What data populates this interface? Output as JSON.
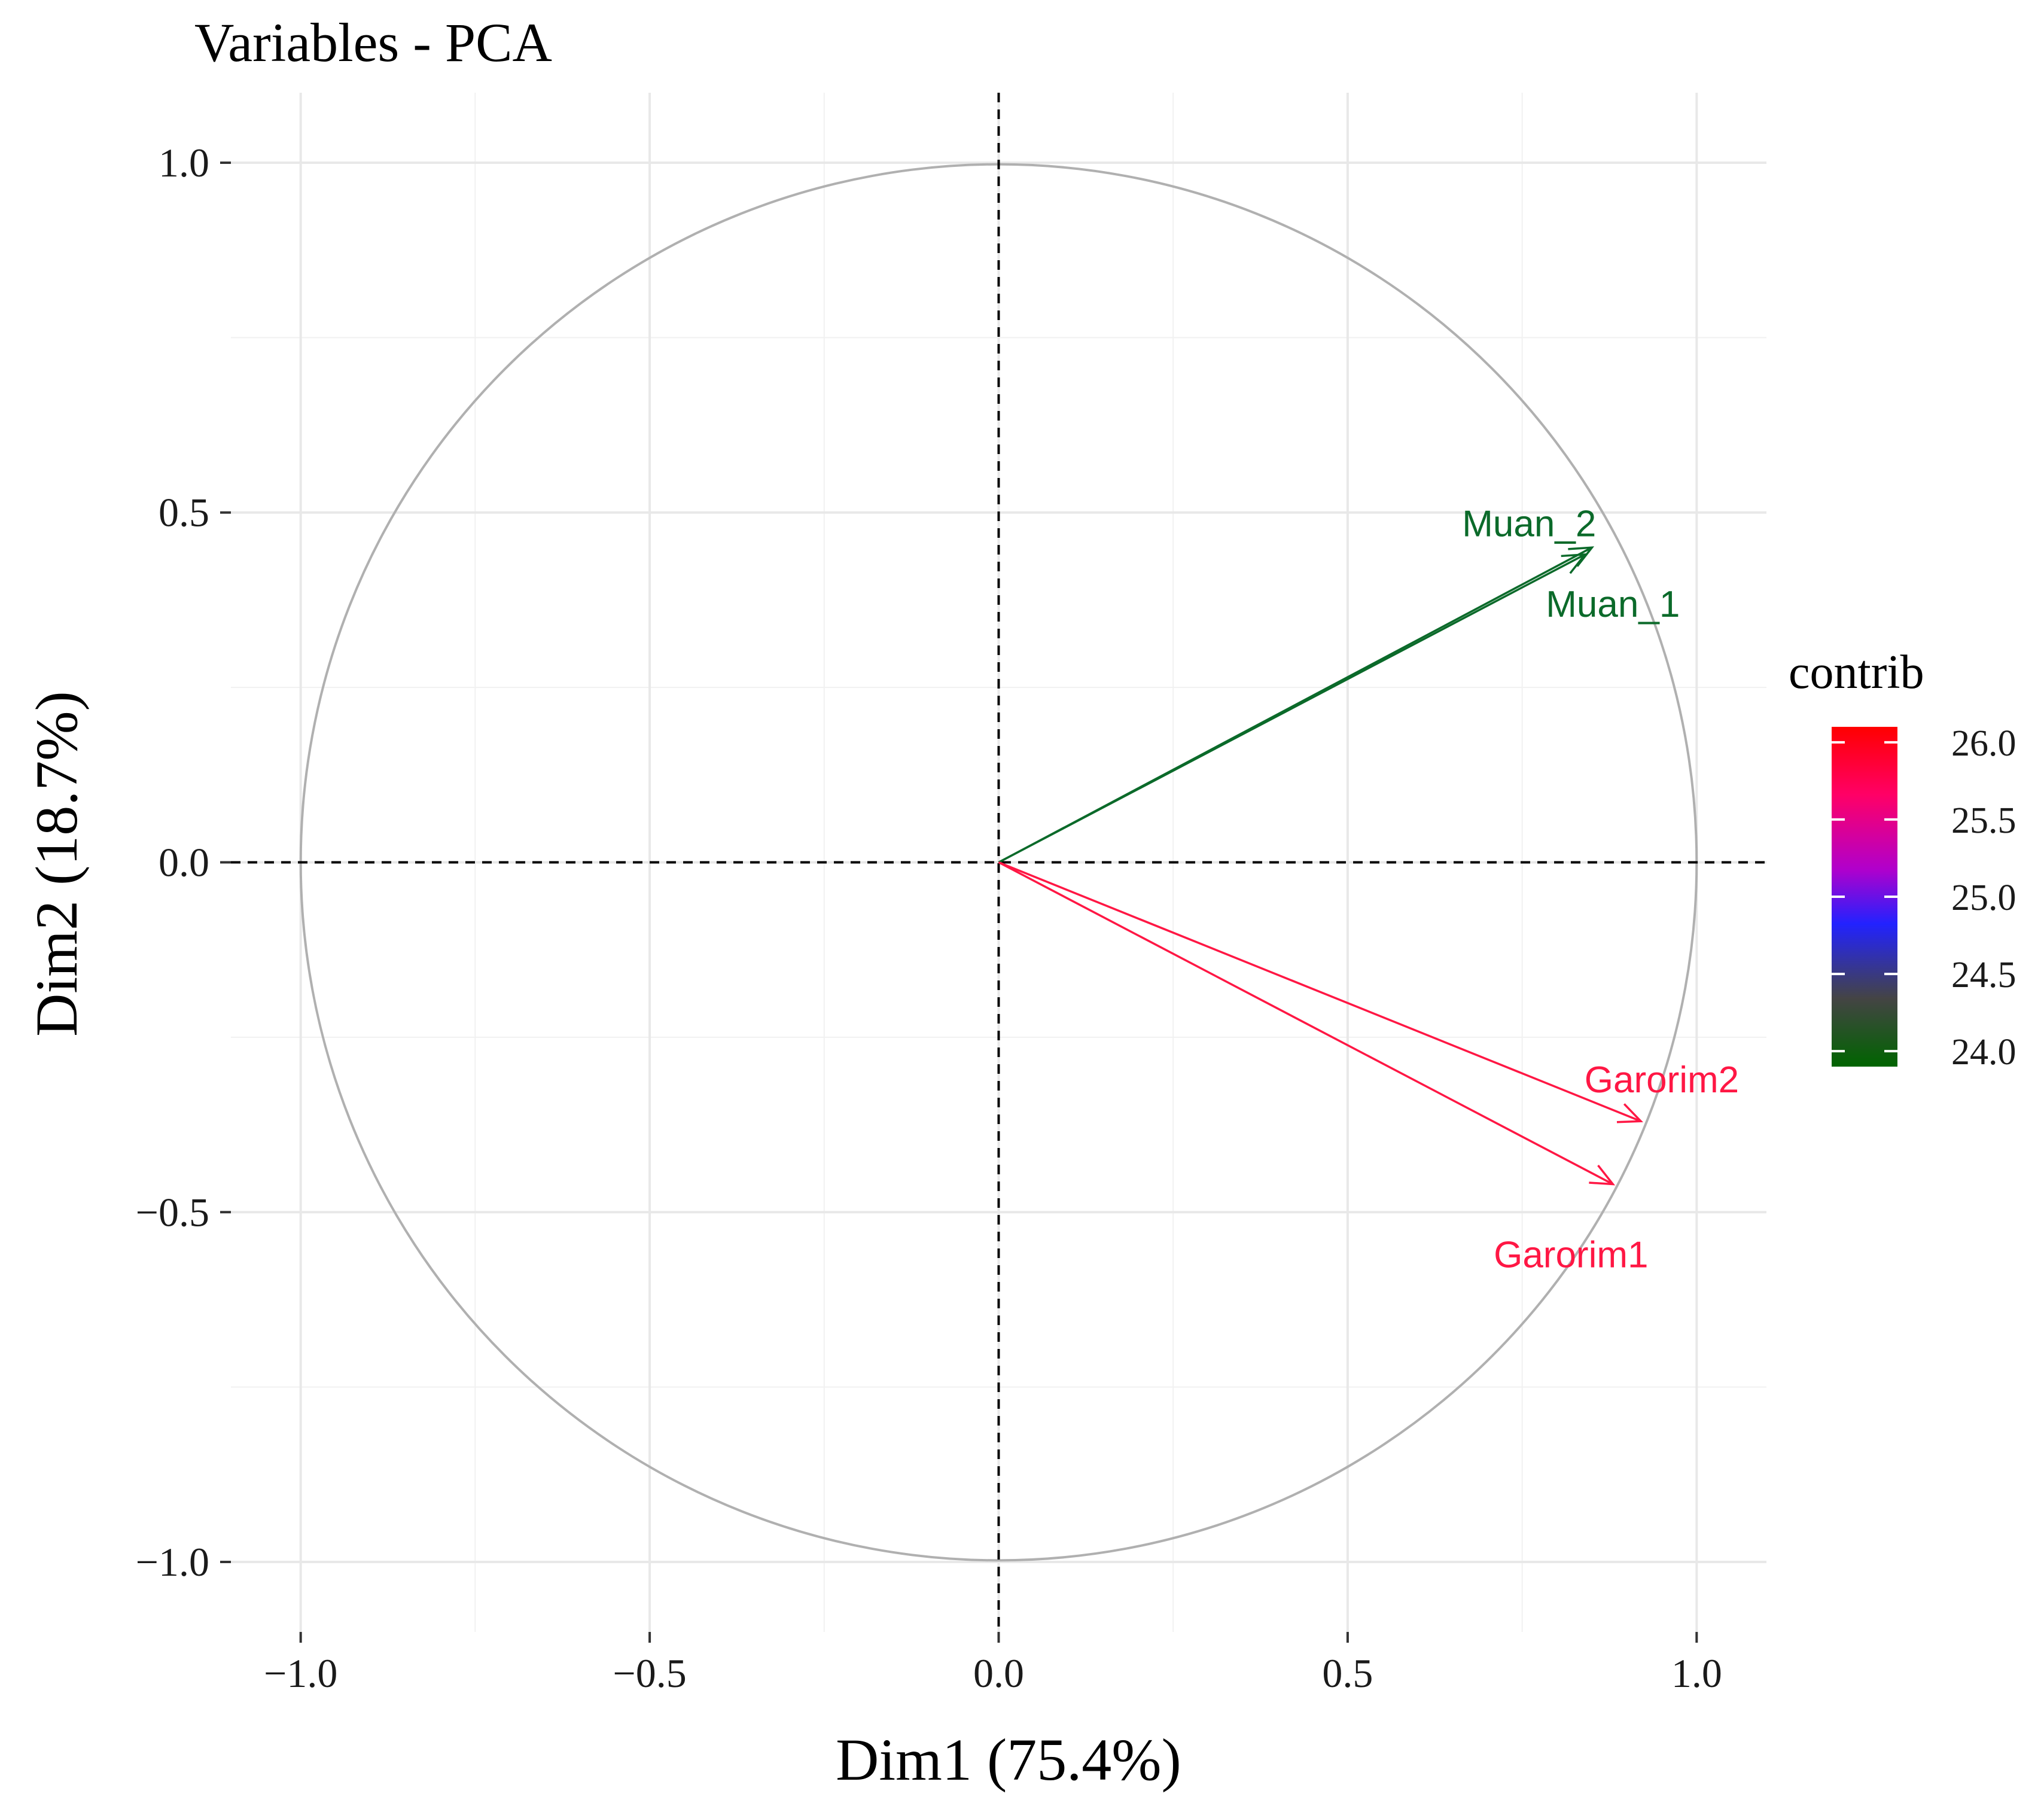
{
  "chart_data": {
    "type": "pca-variables",
    "title": "Variables - PCA",
    "xlabel": "Dim1 (75.4%)",
    "ylabel": "Dim2 (18.7%)",
    "xlim": [
      -1.1,
      1.1
    ],
    "ylim": [
      -1.1,
      1.1
    ],
    "x_ticks": [
      -1.0,
      -0.5,
      0.0,
      0.5,
      1.0
    ],
    "y_ticks": [
      -1.0,
      -0.5,
      0.0,
      0.5,
      1.0
    ],
    "x_tick_labels": [
      "−1.0",
      "−0.5",
      "0.0",
      "0.5",
      "1.0"
    ],
    "y_tick_labels": [
      "−1.0",
      "−0.5",
      "0.0",
      "0.5",
      "1.0"
    ],
    "grid": true,
    "unit_circle": true,
    "variables": [
      {
        "name": "Muan_2",
        "x": 0.84,
        "y": 0.44,
        "contrib": 23.9,
        "color": "#0b6a2a"
      },
      {
        "name": "Muan_1",
        "x": 0.85,
        "y": 0.45,
        "contrib": 24.0,
        "color": "#0b6a2a"
      },
      {
        "name": "Garorim2",
        "x": 0.92,
        "y": -0.37,
        "contrib": 26.0,
        "color": "#ff1744"
      },
      {
        "name": "Garorim1",
        "x": 0.88,
        "y": -0.46,
        "contrib": 26.1,
        "color": "#ff1744"
      }
    ],
    "legend": {
      "title": "contrib",
      "position": "right",
      "ticks": [
        26.0,
        25.5,
        25.0,
        24.5,
        24.0
      ],
      "tick_labels": [
        "26.0",
        "25.5",
        "25.0",
        "24.5",
        "24.0"
      ],
      "range": [
        23.9,
        26.1
      ],
      "gradient_colors": [
        "#ff0000",
        "#ff0066",
        "#b000cc",
        "#2222ff",
        "#444444",
        "#006400"
      ]
    }
  }
}
